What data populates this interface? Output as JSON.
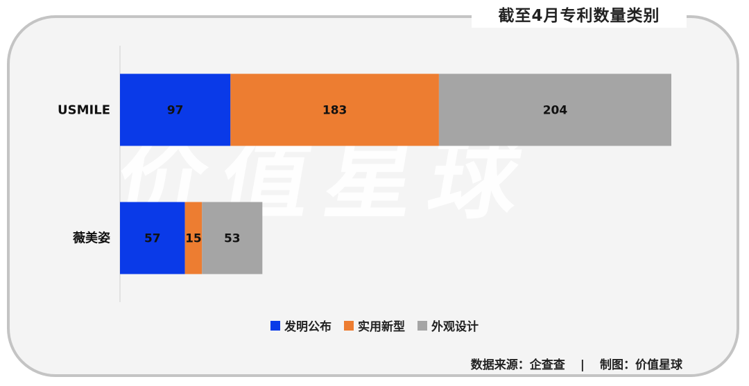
{
  "title": "截至4月专利数量类别",
  "watermark": "价值星球",
  "colors": {
    "invention": "#0a3ae8",
    "utility": "#ed7d31",
    "design": "#a5a5a5"
  },
  "chart_data": {
    "type": "bar",
    "orientation": "horizontal",
    "stacked": true,
    "categories": [
      "USMILE",
      "薇美姿"
    ],
    "series": [
      {
        "name": "发明公布",
        "values": [
          97,
          57
        ]
      },
      {
        "name": "实用新型",
        "values": [
          183,
          15
        ]
      },
      {
        "name": "外观设计",
        "values": [
          204,
          53
        ]
      }
    ],
    "xlim": [
      0,
      484
    ],
    "grid": false,
    "legend": "bottom"
  },
  "legend": {
    "items": [
      {
        "label": "发明公布"
      },
      {
        "label": "实用新型"
      },
      {
        "label": "外观设计"
      }
    ]
  },
  "footer": {
    "source": "数据来源：企查查",
    "separator": "|",
    "made_by": "制图：价值星球"
  }
}
